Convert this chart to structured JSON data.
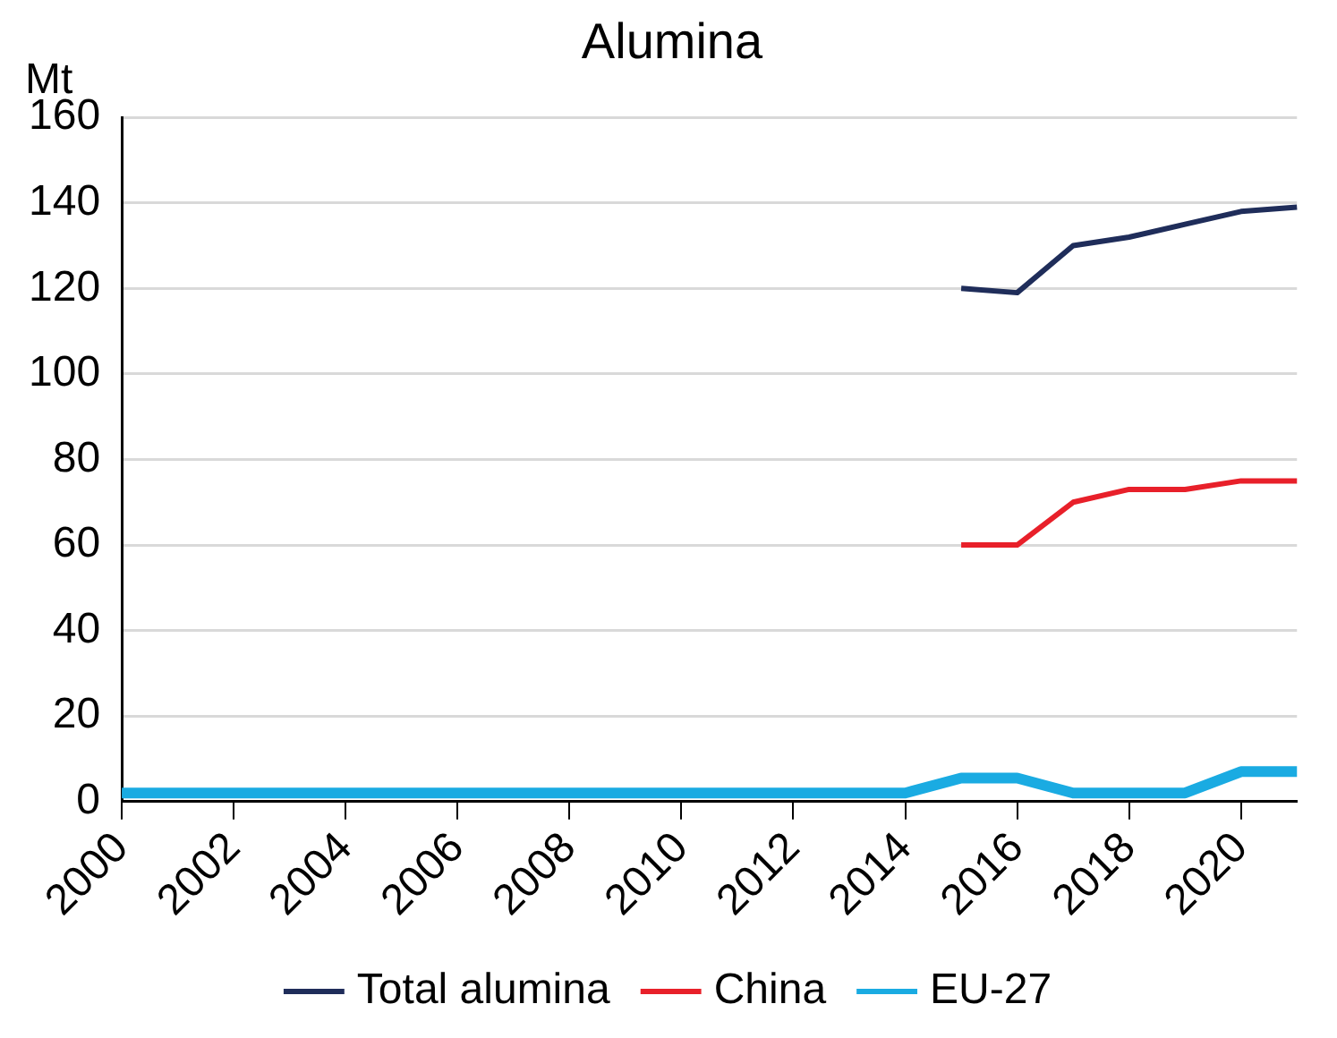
{
  "chart_data": {
    "type": "line",
    "title": "Alumina",
    "ylabel": "Mt",
    "categories": [
      "2000",
      null,
      "2002",
      null,
      "2004",
      null,
      "2006",
      null,
      "2008",
      null,
      "2010",
      null,
      "2012",
      null,
      "2014",
      null,
      "2016",
      null,
      "2018",
      null,
      "2020",
      null
    ],
    "series": [
      {
        "name": "Total alumina",
        "color": "#1f2d5a",
        "values": [
          null,
          null,
          null,
          null,
          null,
          null,
          null,
          null,
          null,
          null,
          null,
          null,
          null,
          null,
          null,
          120,
          119,
          130,
          132,
          135,
          138,
          139
        ]
      },
      {
        "name": "China",
        "color": "#e8202a",
        "values": [
          null,
          null,
          null,
          null,
          null,
          null,
          null,
          null,
          null,
          null,
          null,
          null,
          null,
          null,
          null,
          60,
          60,
          70,
          73,
          73,
          75,
          75
        ]
      },
      {
        "name": "EU-27",
        "color": "#1aabe2",
        "values": [
          2,
          2,
          2,
          2,
          2,
          2,
          2,
          2,
          2,
          2,
          2,
          2,
          2,
          2,
          2,
          5.5,
          5.5,
          2,
          2,
          2,
          7,
          7
        ]
      }
    ],
    "ylim": [
      0,
      160
    ],
    "yticks": [
      0,
      20,
      40,
      60,
      80,
      100,
      120,
      140,
      160
    ],
    "grid": "y",
    "legend": "bottom",
    "marker": "none",
    "line_style": "solid"
  }
}
